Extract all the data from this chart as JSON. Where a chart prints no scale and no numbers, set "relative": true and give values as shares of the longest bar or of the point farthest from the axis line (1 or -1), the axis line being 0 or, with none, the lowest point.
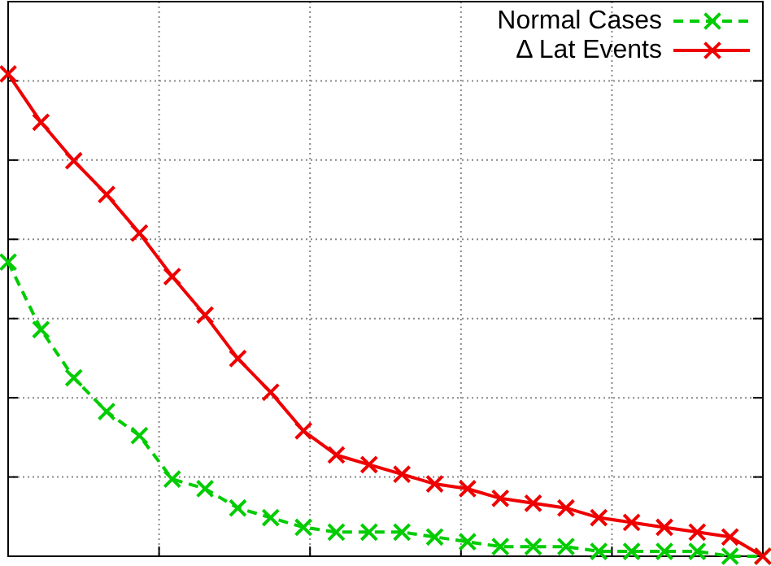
{
  "chart_data": {
    "type": "line",
    "relative": true,
    "grid": true,
    "legend": "top right",
    "categories": [
      null,
      null,
      null,
      null,
      null,
      null,
      null,
      null,
      null,
      null,
      null,
      null,
      null,
      null,
      null,
      null,
      null,
      null,
      null,
      null,
      null,
      null,
      null,
      null
    ],
    "series": [
      {
        "name": "Normal Cases",
        "color": "#00cc00",
        "line_style": "dashed",
        "marker": "cross",
        "values": [
          0.61,
          0.47,
          0.37,
          0.3,
          0.25,
          0.16,
          0.14,
          0.1,
          0.08,
          0.06,
          0.05,
          0.05,
          0.05,
          0.04,
          0.03,
          0.02,
          0.02,
          0.02,
          0.01,
          0.01,
          0.01,
          0.01,
          0,
          0
        ]
      },
      {
        "name": "Δ Lat Events",
        "color": "#ee0000",
        "line_style": "solid",
        "marker": "cross",
        "values": [
          1,
          0.9,
          0.82,
          0.75,
          0.67,
          0.58,
          0.5,
          0.41,
          0.34,
          0.26,
          0.21,
          0.19,
          0.17,
          0.15,
          0.14,
          0.12,
          0.11,
          0.1,
          0.08,
          0.07,
          0.06,
          0.05,
          0.04,
          0
        ]
      }
    ]
  }
}
